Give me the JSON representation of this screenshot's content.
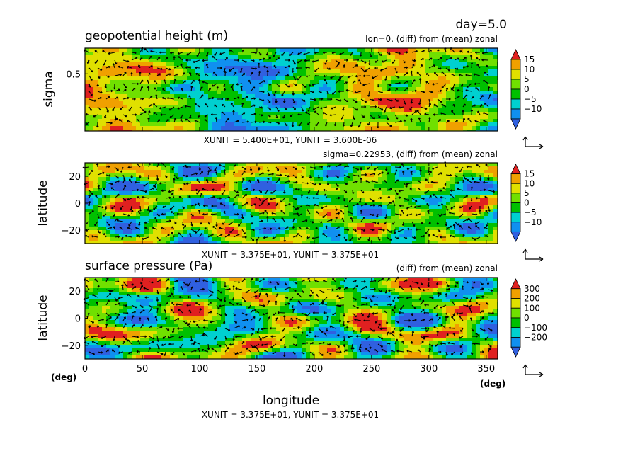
{
  "header": {
    "day_label": "day=5.0"
  },
  "palette": [
    "#3060e0",
    "#1090f0",
    "#00d0d0",
    "#00c000",
    "#70e000",
    "#e0e000",
    "#f0a000",
    "#e02020"
  ],
  "x_axis": {
    "label": "longitude",
    "unit": "(deg)",
    "ticks": [
      "0",
      "50",
      "100",
      "150",
      "200",
      "250",
      "300",
      "350"
    ],
    "range": [
      0,
      360
    ]
  },
  "chart_data": [
    {
      "type": "heatmap",
      "title": "geopotential height (m)",
      "subtitle": "lon=0, (diff) from (mean) zonal",
      "ylabel": "sigma",
      "yticks": [
        "0.5"
      ],
      "ylim": [
        1.0,
        0.0
      ],
      "colorbar": {
        "labels": [
          "15",
          "10",
          "5",
          "0",
          "−5",
          "−10"
        ],
        "levels": [
          15,
          10,
          5,
          0,
          -5,
          -10
        ]
      },
      "vector_units": "XUNIT = 5.400E+01, YUNIT = 3.600E-06",
      "grid": false
    },
    {
      "type": "heatmap",
      "title": "",
      "subtitle": "sigma=0.22953, (diff) from (mean) zonal",
      "ylabel": "latitude",
      "yticks": [
        "20",
        "0",
        "−20"
      ],
      "ylim": [
        -30,
        30
      ],
      "colorbar": {
        "labels": [
          "15",
          "10",
          "5",
          "0",
          "−5",
          "−10"
        ],
        "levels": [
          15,
          10,
          5,
          0,
          -5,
          -10
        ]
      },
      "vector_units": "XUNIT = 3.375E+01, YUNIT = 3.375E+01",
      "grid": false
    },
    {
      "type": "heatmap",
      "title": "surface pressure (Pa)",
      "subtitle": "(diff) from (mean) zonal",
      "ylabel": "latitude",
      "yticks": [
        "20",
        "0",
        "−20"
      ],
      "ylim": [
        -30,
        30
      ],
      "colorbar": {
        "labels": [
          "300",
          "200",
          "100",
          "0",
          "−100",
          "−200"
        ],
        "levels": [
          300,
          200,
          100,
          0,
          -100,
          -200
        ]
      },
      "vector_units": "XUNIT = 3.375E+01, YUNIT = 3.375E+01",
      "grid": false
    }
  ]
}
